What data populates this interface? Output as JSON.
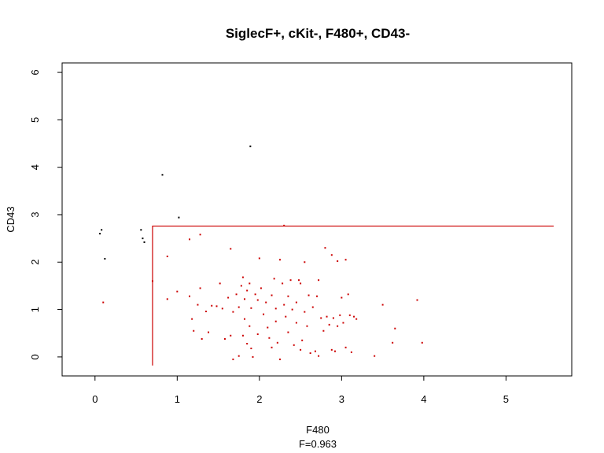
{
  "chart_data": {
    "type": "scatter",
    "title": "SiglecF+, cKit-, F480+, CD43-",
    "xlabel": "F480",
    "subtitle": "F=0.963",
    "ylabel": "CD43",
    "xlim": [
      -0.4,
      5.8
    ],
    "ylim": [
      -0.4,
      6.2
    ],
    "xticks": [
      0,
      1,
      2,
      3,
      4,
      5
    ],
    "yticks": [
      0,
      1,
      2,
      3,
      4,
      5,
      6
    ],
    "colors": {
      "outside_gate": "#000000",
      "inside_gate": "#cc0000",
      "gate": "#cc0000"
    },
    "gate": {
      "x": [
        0.7,
        0.7,
        5.58,
        5.58
      ],
      "y": [
        -0.18,
        2.76,
        2.76,
        2.76
      ],
      "closed": false
    },
    "series": [
      {
        "values": [
          [
            0.06,
            2.6
          ],
          [
            0.08,
            2.68
          ],
          [
            0.12,
            2.07
          ],
          [
            0.56,
            2.68
          ],
          [
            0.58,
            2.5
          ],
          [
            0.6,
            2.42
          ],
          [
            0.82,
            3.84
          ],
          [
            1.02,
            2.94
          ],
          [
            1.89,
            4.44
          ]
        ]
      },
      {
        "values": [
          [
            0.1,
            1.15
          ],
          [
            0.7,
            1.6
          ],
          [
            0.88,
            2.12
          ],
          [
            0.88,
            1.22
          ],
          [
            1.0,
            1.38
          ],
          [
            1.15,
            2.48
          ],
          [
            1.15,
            1.28
          ],
          [
            1.18,
            0.8
          ],
          [
            1.2,
            0.55
          ],
          [
            1.25,
            1.1
          ],
          [
            1.28,
            2.58
          ],
          [
            1.28,
            1.45
          ],
          [
            1.3,
            0.38
          ],
          [
            1.35,
            0.96
          ],
          [
            1.38,
            0.52
          ],
          [
            1.42,
            1.08
          ],
          [
            1.48,
            1.07
          ],
          [
            1.52,
            1.55
          ],
          [
            1.55,
            1.02
          ],
          [
            1.58,
            0.38
          ],
          [
            1.62,
            1.25
          ],
          [
            1.65,
            2.28
          ],
          [
            1.65,
            0.45
          ],
          [
            1.68,
            0.95
          ],
          [
            1.68,
            -0.05
          ],
          [
            1.72,
            1.32
          ],
          [
            1.75,
            1.05
          ],
          [
            1.75,
            0.02
          ],
          [
            1.78,
            1.5
          ],
          [
            1.8,
            1.68
          ],
          [
            1.8,
            0.45
          ],
          [
            1.82,
            1.22
          ],
          [
            1.82,
            0.8
          ],
          [
            1.85,
            1.4
          ],
          [
            1.85,
            0.28
          ],
          [
            1.88,
            1.55
          ],
          [
            1.88,
            0.65
          ],
          [
            1.9,
            1.03
          ],
          [
            1.9,
            0.18
          ],
          [
            1.92,
            0.0
          ],
          [
            1.95,
            1.32
          ],
          [
            1.98,
            1.2
          ],
          [
            1.98,
            0.48
          ],
          [
            2.0,
            2.08
          ],
          [
            2.02,
            1.45
          ],
          [
            2.05,
            0.9
          ],
          [
            2.08,
            1.15
          ],
          [
            2.1,
            0.62
          ],
          [
            2.12,
            0.4
          ],
          [
            2.15,
            1.3
          ],
          [
            2.15,
            0.2
          ],
          [
            2.18,
            1.65
          ],
          [
            2.2,
            1.02
          ],
          [
            2.2,
            0.75
          ],
          [
            2.22,
            0.3
          ],
          [
            2.25,
            2.05
          ],
          [
            2.25,
            -0.05
          ],
          [
            2.28,
            1.55
          ],
          [
            2.3,
            1.1
          ],
          [
            2.3,
            2.77
          ],
          [
            2.32,
            0.85
          ],
          [
            2.35,
            1.28
          ],
          [
            2.35,
            0.52
          ],
          [
            2.38,
            1.62
          ],
          [
            2.4,
            1.0
          ],
          [
            2.42,
            0.25
          ],
          [
            2.45,
            1.15
          ],
          [
            2.45,
            0.72
          ],
          [
            2.48,
            1.62
          ],
          [
            2.5,
            1.55
          ],
          [
            2.5,
            0.15
          ],
          [
            2.52,
            0.35
          ],
          [
            2.55,
            2.0
          ],
          [
            2.55,
            0.95
          ],
          [
            2.58,
            0.65
          ],
          [
            2.6,
            1.3
          ],
          [
            2.62,
            0.08
          ],
          [
            2.65,
            1.05
          ],
          [
            2.68,
            0.12
          ],
          [
            2.7,
            1.28
          ],
          [
            2.72,
            1.62
          ],
          [
            2.72,
            0.02
          ],
          [
            2.75,
            0.82
          ],
          [
            2.78,
            0.55
          ],
          [
            2.8,
            2.3
          ],
          [
            2.82,
            0.85
          ],
          [
            2.85,
            0.68
          ],
          [
            2.88,
            2.15
          ],
          [
            2.88,
            0.15
          ],
          [
            2.9,
            0.82
          ],
          [
            2.92,
            0.12
          ],
          [
            2.95,
            2.02
          ],
          [
            2.95,
            0.65
          ],
          [
            2.98,
            0.88
          ],
          [
            3.0,
            1.25
          ],
          [
            3.02,
            0.72
          ],
          [
            3.05,
            2.05
          ],
          [
            3.05,
            0.2
          ],
          [
            3.08,
            1.32
          ],
          [
            3.1,
            0.88
          ],
          [
            3.12,
            0.1
          ],
          [
            3.15,
            0.85
          ],
          [
            3.18,
            0.8
          ],
          [
            3.4,
            0.02
          ],
          [
            3.5,
            1.1
          ],
          [
            3.62,
            0.3
          ],
          [
            3.65,
            0.6
          ],
          [
            3.92,
            1.2
          ],
          [
            3.98,
            0.3
          ]
        ]
      }
    ]
  }
}
